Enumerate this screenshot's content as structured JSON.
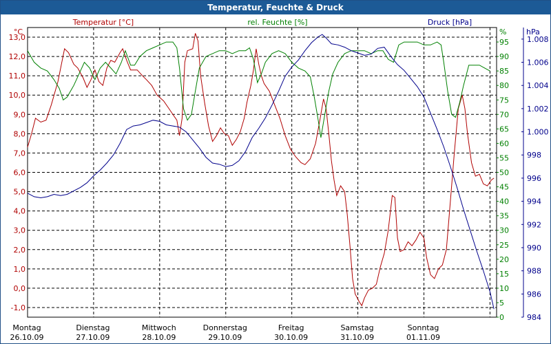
{
  "chart_data": {
    "type": "line",
    "title": "Temperatur, Feuchte & Druck",
    "legend": {
      "temperature": "Temperatur [°C]",
      "humidity": "rel. Feuchte [%]",
      "pressure": "Druck [hPa]"
    },
    "axes": {
      "temp": {
        "unit": "°C",
        "range": [
          -1.5,
          13.5
        ],
        "ticks": [
          "13,0",
          "12,0",
          "11,0",
          "10,0",
          "9,0",
          "8,0",
          "7,0",
          "6,0",
          "5,0",
          "4,0",
          "3,0",
          "2,0",
          "1,0",
          "0,0",
          "-1,0"
        ]
      },
      "humidity": {
        "unit": "%",
        "range": [
          0,
          100
        ],
        "ticks": [
          "95",
          "90",
          "85",
          "80",
          "75",
          "70",
          "65",
          "60",
          "55",
          "50",
          "45",
          "40",
          "35",
          "30",
          "25",
          "20",
          "15",
          "10",
          "5",
          "0"
        ]
      },
      "pressure": {
        "unit": "hPa",
        "range": [
          984,
          1009
        ],
        "ticks": [
          "1.008",
          "1.006",
          "1.004",
          "1.002",
          "1.000",
          "998",
          "996",
          "994",
          "992",
          "990",
          "988",
          "986",
          "984"
        ]
      }
    },
    "x_days": [
      {
        "day": "Montag",
        "date": "26.10.09"
      },
      {
        "day": "Dienstag",
        "date": "27.10.09"
      },
      {
        "day": "Mittwoch",
        "date": "28.10.09"
      },
      {
        "day": "Donnerstag",
        "date": "29.10.09"
      },
      {
        "day": "Freitag",
        "date": "30.10.09"
      },
      {
        "day": "Samstag",
        "date": "31.10.09"
      },
      {
        "day": "Sonntag",
        "date": "01.11.09"
      }
    ],
    "x_range_days": [
      0,
      7.1
    ],
    "series": [
      {
        "name": "Temperatur",
        "axis": "temp",
        "color": "#b00000",
        "points": [
          [
            0,
            7.3
          ],
          [
            0.06,
            8.0
          ],
          [
            0.12,
            8.8
          ],
          [
            0.2,
            8.6
          ],
          [
            0.28,
            8.7
          ],
          [
            0.36,
            9.5
          ],
          [
            0.46,
            10.7
          ],
          [
            0.56,
            12.4
          ],
          [
            0.62,
            12.2
          ],
          [
            0.7,
            11.6
          ],
          [
            0.76,
            11.4
          ],
          [
            0.84,
            10.9
          ],
          [
            0.9,
            10.4
          ],
          [
            0.96,
            10.8
          ],
          [
            1.02,
            11.3
          ],
          [
            1.08,
            10.7
          ],
          [
            1.14,
            10.5
          ],
          [
            1.2,
            11.4
          ],
          [
            1.26,
            11.8
          ],
          [
            1.32,
            11.7
          ],
          [
            1.4,
            12.2
          ],
          [
            1.44,
            12.4
          ],
          [
            1.5,
            11.8
          ],
          [
            1.56,
            11.3
          ],
          [
            1.66,
            11.3
          ],
          [
            1.74,
            11.0
          ],
          [
            1.8,
            10.8
          ],
          [
            1.88,
            10.5
          ],
          [
            1.96,
            10.0
          ],
          [
            2.06,
            9.7
          ],
          [
            2.14,
            9.3
          ],
          [
            2.22,
            8.9
          ],
          [
            2.26,
            8.7
          ],
          [
            2.3,
            7.9
          ],
          [
            2.34,
            8.8
          ],
          [
            2.38,
            11.7
          ],
          [
            2.42,
            12.3
          ],
          [
            2.5,
            12.4
          ],
          [
            2.54,
            13.2
          ],
          [
            2.58,
            12.8
          ],
          [
            2.62,
            11.0
          ],
          [
            2.68,
            9.6
          ],
          [
            2.74,
            8.4
          ],
          [
            2.8,
            7.6
          ],
          [
            2.86,
            7.9
          ],
          [
            2.92,
            8.3
          ],
          [
            2.98,
            8.0
          ],
          [
            3.04,
            7.9
          ],
          [
            3.1,
            7.4
          ],
          [
            3.16,
            7.7
          ],
          [
            3.22,
            8.1
          ],
          [
            3.28,
            8.8
          ],
          [
            3.32,
            9.6
          ],
          [
            3.38,
            10.5
          ],
          [
            3.42,
            11.3
          ],
          [
            3.46,
            12.4
          ],
          [
            3.5,
            11.6
          ],
          [
            3.54,
            11.0
          ],
          [
            3.58,
            10.6
          ],
          [
            3.66,
            10.2
          ],
          [
            3.74,
            9.5
          ],
          [
            3.82,
            8.8
          ],
          [
            3.9,
            7.9
          ],
          [
            3.98,
            7.2
          ],
          [
            4.06,
            6.8
          ],
          [
            4.14,
            6.5
          ],
          [
            4.2,
            6.4
          ],
          [
            4.28,
            6.7
          ],
          [
            4.36,
            7.5
          ],
          [
            4.42,
            8.6
          ],
          [
            4.48,
            9.8
          ],
          [
            4.52,
            9.3
          ],
          [
            4.56,
            8.0
          ],
          [
            4.6,
            6.6
          ],
          [
            4.64,
            5.6
          ],
          [
            4.68,
            4.8
          ],
          [
            4.74,
            5.3
          ],
          [
            4.8,
            5.0
          ],
          [
            4.84,
            3.8
          ],
          [
            4.88,
            2.2
          ],
          [
            4.92,
            0.5
          ],
          [
            4.96,
            -0.3
          ],
          [
            5.02,
            -0.7
          ],
          [
            5.06,
            -0.9
          ],
          [
            5.1,
            -0.5
          ],
          [
            5.16,
            -0.1
          ],
          [
            5.22,
            0.0
          ],
          [
            5.28,
            0.2
          ],
          [
            5.34,
            1.1
          ],
          [
            5.4,
            1.8
          ],
          [
            5.46,
            3.0
          ],
          [
            5.52,
            4.8
          ],
          [
            5.56,
            4.7
          ],
          [
            5.6,
            2.6
          ],
          [
            5.64,
            1.9
          ],
          [
            5.7,
            2.0
          ],
          [
            5.76,
            2.4
          ],
          [
            5.82,
            2.2
          ],
          [
            5.88,
            2.5
          ],
          [
            5.94,
            2.9
          ],
          [
            6.0,
            2.6
          ],
          [
            6.04,
            1.6
          ],
          [
            6.1,
            0.7
          ],
          [
            6.16,
            0.5
          ],
          [
            6.22,
            1.0
          ],
          [
            6.28,
            1.2
          ],
          [
            6.34,
            2.0
          ],
          [
            6.4,
            4.5
          ],
          [
            6.46,
            7.0
          ],
          [
            6.52,
            9.3
          ],
          [
            6.58,
            10.0
          ],
          [
            6.62,
            9.3
          ],
          [
            6.66,
            8.0
          ],
          [
            6.72,
            6.5
          ],
          [
            6.78,
            5.8
          ],
          [
            6.84,
            5.9
          ],
          [
            6.9,
            5.4
          ],
          [
            6.96,
            5.3
          ],
          [
            7.02,
            5.6
          ],
          [
            7.06,
            5.7
          ]
        ]
      },
      {
        "name": "rel. Feuchte",
        "axis": "humidity",
        "color": "#008000",
        "points": [
          [
            0,
            92
          ],
          [
            0.1,
            88
          ],
          [
            0.2,
            86
          ],
          [
            0.3,
            85
          ],
          [
            0.4,
            82
          ],
          [
            0.48,
            79
          ],
          [
            0.54,
            75
          ],
          [
            0.6,
            76
          ],
          [
            0.7,
            80
          ],
          [
            0.78,
            84
          ],
          [
            0.86,
            88
          ],
          [
            0.94,
            86
          ],
          [
            1.02,
            82
          ],
          [
            1.1,
            86
          ],
          [
            1.18,
            88
          ],
          [
            1.26,
            86
          ],
          [
            1.34,
            84
          ],
          [
            1.42,
            88
          ],
          [
            1.48,
            92
          ],
          [
            1.56,
            87
          ],
          [
            1.62,
            87
          ],
          [
            1.7,
            90
          ],
          [
            1.8,
            92
          ],
          [
            1.9,
            93
          ],
          [
            2.0,
            94
          ],
          [
            2.1,
            95
          ],
          [
            2.2,
            95
          ],
          [
            2.26,
            93
          ],
          [
            2.3,
            86
          ],
          [
            2.36,
            72
          ],
          [
            2.42,
            68
          ],
          [
            2.48,
            70
          ],
          [
            2.54,
            78
          ],
          [
            2.6,
            86
          ],
          [
            2.7,
            90
          ],
          [
            2.8,
            91
          ],
          [
            2.9,
            92
          ],
          [
            3.0,
            92
          ],
          [
            3.1,
            91
          ],
          [
            3.2,
            92
          ],
          [
            3.3,
            92
          ],
          [
            3.36,
            93
          ],
          [
            3.42,
            89
          ],
          [
            3.48,
            81
          ],
          [
            3.54,
            84
          ],
          [
            3.6,
            88
          ],
          [
            3.7,
            91
          ],
          [
            3.8,
            92
          ],
          [
            3.9,
            91
          ],
          [
            4.0,
            88
          ],
          [
            4.1,
            86
          ],
          [
            4.2,
            85
          ],
          [
            4.28,
            83
          ],
          [
            4.34,
            76
          ],
          [
            4.4,
            68
          ],
          [
            4.44,
            62
          ],
          [
            4.5,
            70
          ],
          [
            4.56,
            78
          ],
          [
            4.62,
            84
          ],
          [
            4.7,
            88
          ],
          [
            4.8,
            91
          ],
          [
            4.9,
            92
          ],
          [
            5.0,
            92
          ],
          [
            5.1,
            92
          ],
          [
            5.2,
            91
          ],
          [
            5.3,
            92
          ],
          [
            5.38,
            92
          ],
          [
            5.46,
            89
          ],
          [
            5.54,
            88
          ],
          [
            5.62,
            94
          ],
          [
            5.7,
            95
          ],
          [
            5.8,
            95
          ],
          [
            5.9,
            95
          ],
          [
            6.0,
            94
          ],
          [
            6.1,
            94
          ],
          [
            6.2,
            95
          ],
          [
            6.26,
            94
          ],
          [
            6.3,
            88
          ],
          [
            6.36,
            78
          ],
          [
            6.42,
            70
          ],
          [
            6.48,
            69
          ],
          [
            6.54,
            74
          ],
          [
            6.6,
            80
          ],
          [
            6.68,
            87
          ],
          [
            6.76,
            87
          ],
          [
            6.84,
            87
          ],
          [
            6.92,
            86
          ],
          [
            7.0,
            85
          ]
        ]
      },
      {
        "name": "Druck",
        "axis": "pressure",
        "color": "#00008b",
        "points": [
          [
            0,
            994.7
          ],
          [
            0.1,
            994.4
          ],
          [
            0.2,
            994.3
          ],
          [
            0.3,
            994.4
          ],
          [
            0.4,
            994.6
          ],
          [
            0.5,
            994.5
          ],
          [
            0.6,
            994.6
          ],
          [
            0.7,
            994.9
          ],
          [
            0.8,
            995.2
          ],
          [
            0.9,
            995.6
          ],
          [
            1.0,
            996.2
          ],
          [
            1.1,
            996.7
          ],
          [
            1.2,
            997.3
          ],
          [
            1.3,
            998.0
          ],
          [
            1.4,
            999.0
          ],
          [
            1.5,
            1000.2
          ],
          [
            1.6,
            1000.5
          ],
          [
            1.7,
            1000.6
          ],
          [
            1.8,
            1000.8
          ],
          [
            1.9,
            1001.0
          ],
          [
            2.0,
            1000.9
          ],
          [
            2.1,
            1000.6
          ],
          [
            2.2,
            1000.5
          ],
          [
            2.3,
            1000.4
          ],
          [
            2.4,
            1000.0
          ],
          [
            2.5,
            999.3
          ],
          [
            2.6,
            998.6
          ],
          [
            2.7,
            997.8
          ],
          [
            2.8,
            997.3
          ],
          [
            2.9,
            997.2
          ],
          [
            3.0,
            997.0
          ],
          [
            3.1,
            997.1
          ],
          [
            3.2,
            997.5
          ],
          [
            3.3,
            998.3
          ],
          [
            3.4,
            999.5
          ],
          [
            3.5,
            1000.3
          ],
          [
            3.6,
            1001.2
          ],
          [
            3.7,
            1002.3
          ],
          [
            3.8,
            1003.5
          ],
          [
            3.9,
            1004.8
          ],
          [
            4.0,
            1005.6
          ],
          [
            4.1,
            1006.2
          ],
          [
            4.2,
            1007.0
          ],
          [
            4.3,
            1007.7
          ],
          [
            4.4,
            1008.2
          ],
          [
            4.46,
            1008.4
          ],
          [
            4.52,
            1008.1
          ],
          [
            4.6,
            1007.6
          ],
          [
            4.7,
            1007.5
          ],
          [
            4.8,
            1007.3
          ],
          [
            4.9,
            1007.0
          ],
          [
            5.0,
            1006.8
          ],
          [
            5.1,
            1006.6
          ],
          [
            5.2,
            1006.7
          ],
          [
            5.3,
            1007.2
          ],
          [
            5.4,
            1007.3
          ],
          [
            5.5,
            1006.5
          ],
          [
            5.6,
            1005.8
          ],
          [
            5.7,
            1005.3
          ],
          [
            5.8,
            1004.6
          ],
          [
            5.9,
            1003.9
          ],
          [
            6.0,
            1003.0
          ],
          [
            6.1,
            1001.6
          ],
          [
            6.2,
            1000.2
          ],
          [
            6.3,
            998.7
          ],
          [
            6.4,
            997.0
          ],
          [
            6.5,
            995.2
          ],
          [
            6.6,
            993.3
          ],
          [
            6.7,
            991.5
          ],
          [
            6.8,
            989.7
          ],
          [
            6.9,
            988.0
          ],
          [
            7.0,
            986.2
          ],
          [
            7.06,
            984.7
          ]
        ]
      }
    ]
  }
}
